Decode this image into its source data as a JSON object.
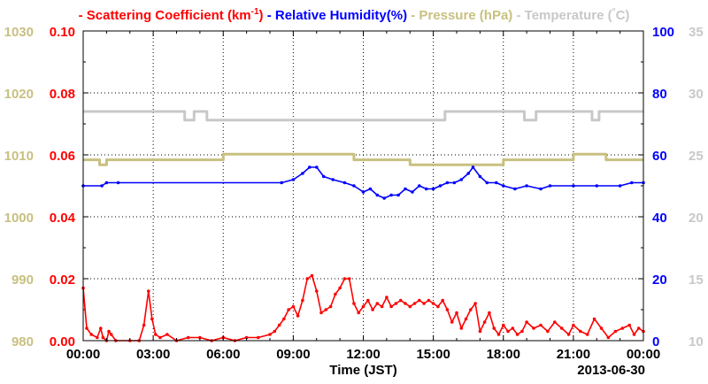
{
  "chart_data": {
    "type": "line",
    "legend": {
      "placement": "top",
      "entries": [
        {
          "name": "Scattering Coefficient (km",
          "sup": "-1",
          "suffix": ")",
          "color": "#ff0000"
        },
        {
          "name": "Relative Humidity(%)",
          "sup": "",
          "suffix": "",
          "color": "#0000ff"
        },
        {
          "name": "Pressure (hPa)",
          "sup": "",
          "suffix": "",
          "color": "#c8c080"
        },
        {
          "name": "Temperature (",
          "sup": "°",
          "suffix": "C)",
          "color": "#c8c8c8"
        }
      ]
    },
    "xlabel": "Time (JST)",
    "date_label": "2013-06-30",
    "x_range_hours": [
      0,
      24
    ],
    "x_ticks": [
      {
        "h": 0,
        "label": "00:00"
      },
      {
        "h": 3,
        "label": "03:00"
      },
      {
        "h": 6,
        "label": "06:00"
      },
      {
        "h": 9,
        "label": "09:00"
      },
      {
        "h": 12,
        "label": "12:00"
      },
      {
        "h": 15,
        "label": "15:00"
      },
      {
        "h": 18,
        "label": "18:00"
      },
      {
        "h": 21,
        "label": "21:00"
      },
      {
        "h": 24,
        "label": "00:00"
      }
    ],
    "grid": true,
    "axes": {
      "pressure": {
        "range": [
          980,
          1030
        ],
        "ticks": [
          "980",
          "990",
          "1000",
          "1010",
          "1020",
          "1030"
        ],
        "color": "#c8c080"
      },
      "scattering": {
        "range": [
          0,
          0.1
        ],
        "ticks": [
          "0.00",
          "0.02",
          "0.04",
          "0.06",
          "0.08",
          "0.10"
        ],
        "color": "#ff0000"
      },
      "humidity": {
        "range": [
          0,
          100
        ],
        "ticks": [
          "0",
          "20",
          "40",
          "60",
          "80",
          "100"
        ],
        "color": "#0000ff"
      },
      "temperature": {
        "range": [
          10,
          35
        ],
        "ticks": [
          "10",
          "15",
          "20",
          "25",
          "30",
          "35"
        ],
        "color": "#c8c8c8"
      }
    },
    "series": [
      {
        "name": "Temperature",
        "axis": "temperature",
        "step": true,
        "color": "#c8c8c8",
        "points": [
          [
            0,
            28.5
          ],
          [
            4.35,
            28.5
          ],
          [
            4.35,
            27.8
          ],
          [
            4.75,
            27.8
          ],
          [
            4.75,
            28.5
          ],
          [
            5.3,
            28.5
          ],
          [
            5.3,
            27.8
          ],
          [
            15.5,
            27.8
          ],
          [
            15.5,
            28.5
          ],
          [
            18.9,
            28.5
          ],
          [
            18.9,
            27.8
          ],
          [
            19.4,
            27.8
          ],
          [
            19.4,
            28.5
          ],
          [
            21.8,
            28.5
          ],
          [
            21.8,
            27.8
          ],
          [
            22.1,
            27.8
          ],
          [
            22.1,
            28.5
          ],
          [
            24,
            28.5
          ]
        ]
      },
      {
        "name": "Pressure",
        "axis": "pressure",
        "step": true,
        "color": "#c8c080",
        "points": [
          [
            0,
            1009.2
          ],
          [
            0.7,
            1009.2
          ],
          [
            0.7,
            1008.4
          ],
          [
            1.0,
            1008.4
          ],
          [
            1.0,
            1009.2
          ],
          [
            6.0,
            1009.2
          ],
          [
            6.0,
            1010.1
          ],
          [
            11.6,
            1010.1
          ],
          [
            11.6,
            1009.2
          ],
          [
            14.0,
            1009.2
          ],
          [
            14.0,
            1008.4
          ],
          [
            18.0,
            1008.4
          ],
          [
            18.0,
            1009.2
          ],
          [
            21.0,
            1009.2
          ],
          [
            21.0,
            1010.1
          ],
          [
            22.4,
            1010.1
          ],
          [
            22.4,
            1009.2
          ],
          [
            24,
            1009.2
          ]
        ]
      },
      {
        "name": "Relative Humidity",
        "axis": "humidity",
        "step": false,
        "color": "#0000ff",
        "points": [
          [
            0,
            50
          ],
          [
            0.8,
            50
          ],
          [
            1.0,
            51
          ],
          [
            1.5,
            51
          ],
          [
            8.5,
            51
          ],
          [
            9.0,
            52
          ],
          [
            9.4,
            54
          ],
          [
            9.7,
            56
          ],
          [
            10.0,
            56
          ],
          [
            10.3,
            53
          ],
          [
            10.7,
            52
          ],
          [
            11.2,
            51
          ],
          [
            11.6,
            50
          ],
          [
            12.0,
            48
          ],
          [
            12.3,
            49
          ],
          [
            12.6,
            47
          ],
          [
            12.9,
            46
          ],
          [
            13.2,
            47
          ],
          [
            13.5,
            47
          ],
          [
            13.8,
            49
          ],
          [
            14.1,
            48
          ],
          [
            14.4,
            50
          ],
          [
            14.7,
            49
          ],
          [
            15.0,
            49
          ],
          [
            15.3,
            50
          ],
          [
            15.6,
            51
          ],
          [
            15.9,
            51
          ],
          [
            16.2,
            52
          ],
          [
            16.5,
            54
          ],
          [
            16.7,
            56
          ],
          [
            17.0,
            53
          ],
          [
            17.3,
            51
          ],
          [
            17.7,
            51
          ],
          [
            18.0,
            50
          ],
          [
            18.5,
            49
          ],
          [
            19.0,
            50
          ],
          [
            19.6,
            49
          ],
          [
            20.0,
            50
          ],
          [
            21.0,
            50
          ],
          [
            22.0,
            50
          ],
          [
            23.0,
            50
          ],
          [
            23.5,
            51
          ],
          [
            24,
            51
          ]
        ]
      },
      {
        "name": "Scattering Coefficient",
        "axis": "scattering",
        "step": false,
        "color": "#ff0000",
        "points": [
          [
            0,
            0.017
          ],
          [
            0.15,
            0.004
          ],
          [
            0.35,
            0.002
          ],
          [
            0.6,
            0.001
          ],
          [
            0.75,
            0.004
          ],
          [
            0.85,
            0.001
          ],
          [
            1.0,
            0.0
          ],
          [
            1.1,
            0.003
          ],
          [
            1.2,
            0.002
          ],
          [
            1.4,
            0.0
          ],
          [
            2.0,
            0.0
          ],
          [
            2.4,
            0.0
          ],
          [
            2.6,
            0.005
          ],
          [
            2.8,
            0.016
          ],
          [
            2.95,
            0.007
          ],
          [
            3.1,
            0.002
          ],
          [
            3.3,
            0.001
          ],
          [
            3.6,
            0.002
          ],
          [
            4.0,
            0.0
          ],
          [
            4.5,
            0.001
          ],
          [
            5.0,
            0.001
          ],
          [
            5.5,
            0.0
          ],
          [
            6.0,
            0.001
          ],
          [
            6.5,
            0.0
          ],
          [
            7.0,
            0.001
          ],
          [
            7.5,
            0.001
          ],
          [
            8.0,
            0.002
          ],
          [
            8.2,
            0.003
          ],
          [
            8.4,
            0.005
          ],
          [
            8.6,
            0.007
          ],
          [
            8.8,
            0.01
          ],
          [
            9.0,
            0.011
          ],
          [
            9.2,
            0.008
          ],
          [
            9.4,
            0.013
          ],
          [
            9.6,
            0.02
          ],
          [
            9.8,
            0.021
          ],
          [
            10.0,
            0.016
          ],
          [
            10.2,
            0.009
          ],
          [
            10.4,
            0.01
          ],
          [
            10.6,
            0.011
          ],
          [
            10.8,
            0.015
          ],
          [
            11.0,
            0.017
          ],
          [
            11.2,
            0.02
          ],
          [
            11.4,
            0.02
          ],
          [
            11.6,
            0.012
          ],
          [
            11.8,
            0.009
          ],
          [
            12.0,
            0.011
          ],
          [
            12.2,
            0.013
          ],
          [
            12.4,
            0.01
          ],
          [
            12.6,
            0.012
          ],
          [
            12.8,
            0.011
          ],
          [
            13.0,
            0.014
          ],
          [
            13.2,
            0.011
          ],
          [
            13.4,
            0.012
          ],
          [
            13.6,
            0.013
          ],
          [
            13.8,
            0.012
          ],
          [
            14.0,
            0.011
          ],
          [
            14.2,
            0.012
          ],
          [
            14.4,
            0.013
          ],
          [
            14.6,
            0.012
          ],
          [
            14.8,
            0.013
          ],
          [
            15.0,
            0.012
          ],
          [
            15.2,
            0.011
          ],
          [
            15.4,
            0.013
          ],
          [
            15.6,
            0.01
          ],
          [
            15.8,
            0.006
          ],
          [
            16.0,
            0.009
          ],
          [
            16.2,
            0.004
          ],
          [
            16.4,
            0.007
          ],
          [
            16.6,
            0.01
          ],
          [
            16.8,
            0.012
          ],
          [
            17.0,
            0.003
          ],
          [
            17.2,
            0.006
          ],
          [
            17.4,
            0.009
          ],
          [
            17.6,
            0.004
          ],
          [
            17.8,
            0.002
          ],
          [
            18.0,
            0.005
          ],
          [
            18.2,
            0.003
          ],
          [
            18.4,
            0.004
          ],
          [
            18.6,
            0.002
          ],
          [
            18.8,
            0.003
          ],
          [
            19.0,
            0.006
          ],
          [
            19.3,
            0.004
          ],
          [
            19.6,
            0.005
          ],
          [
            19.9,
            0.003
          ],
          [
            20.2,
            0.006
          ],
          [
            20.5,
            0.004
          ],
          [
            20.8,
            0.002
          ],
          [
            21.0,
            0.005
          ],
          [
            21.3,
            0.003
          ],
          [
            21.6,
            0.002
          ],
          [
            21.9,
            0.007
          ],
          [
            22.2,
            0.004
          ],
          [
            22.5,
            0.001
          ],
          [
            22.8,
            0.003
          ],
          [
            23.1,
            0.004
          ],
          [
            23.4,
            0.005
          ],
          [
            23.6,
            0.002
          ],
          [
            23.8,
            0.004
          ],
          [
            24,
            0.003
          ]
        ]
      }
    ]
  }
}
